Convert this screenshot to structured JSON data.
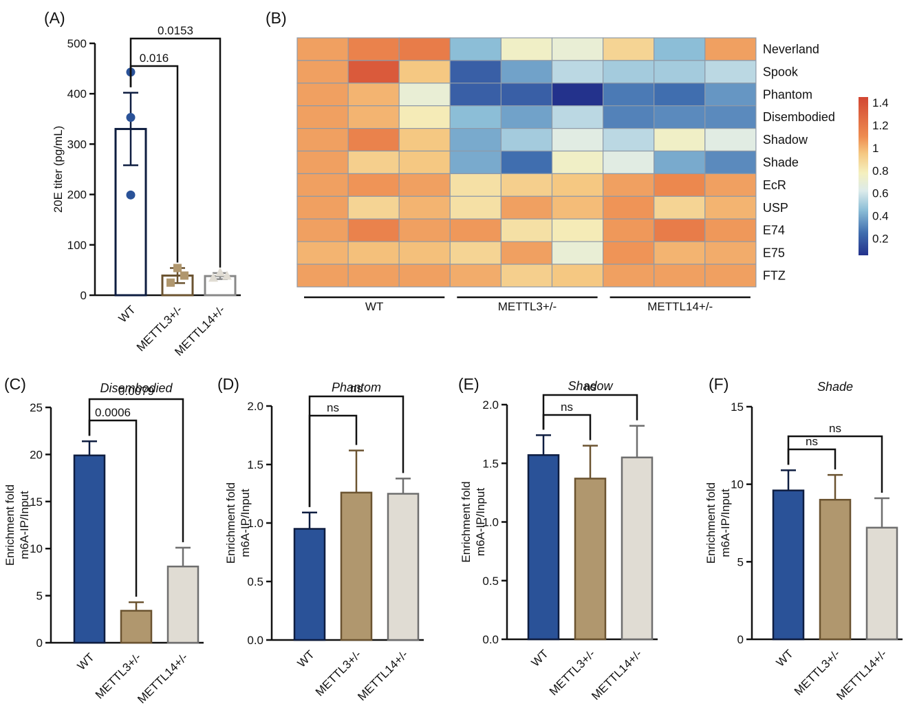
{
  "panel_labels": {
    "a": "(A)",
    "b": "(B)",
    "c": "(C)",
    "d": "(D)",
    "e": "(E)",
    "f": "(F)"
  },
  "colors": {
    "wt": "#2a5298",
    "mettl3": "#b0976e",
    "mettl14": "#e0dcd3",
    "mettl3_edge": "#6b5330",
    "mettl14_edge": "#6e6e6e",
    "wt_edge": "#0e1d40",
    "axis": "#111111"
  },
  "chart_data": [
    {
      "id": "A",
      "type": "bar",
      "title": "",
      "ylabel": "20E titer (pg/mL)",
      "categories": [
        "WT",
        "METTL3+/-",
        "METTL14+/-"
      ],
      "values": [
        330,
        39,
        38
      ],
      "errors": [
        72,
        15,
        6
      ],
      "points": [
        [
          443,
          353,
          199
        ],
        [
          54,
          39,
          25
        ],
        [
          46,
          39,
          35
        ]
      ],
      "ylim": [
        0,
        500
      ],
      "yticks": [
        "0",
        "100",
        "200",
        "300",
        "400",
        "500"
      ],
      "brackets": [
        {
          "from": 0,
          "to": 1,
          "label": "0.016"
        },
        {
          "from": 0,
          "to": 2,
          "label": "0.0153"
        }
      ]
    },
    {
      "id": "B",
      "type": "heatmap",
      "rows": [
        "Neverland",
        "Spook",
        "Phantom",
        "Disembodied",
        "Shadow",
        "Shade",
        "EcR",
        "USP",
        "E74",
        "E75",
        "FTZ"
      ],
      "groups": [
        "WT",
        "METTL3+/-",
        "METTL14+/-"
      ],
      "columns_per_group": 3,
      "values": [
        [
          1.05,
          1.15,
          1.18,
          0.45,
          0.75,
          0.7,
          0.9,
          0.45,
          1.05
        ],
        [
          1.05,
          1.35,
          0.95,
          0.2,
          0.38,
          0.55,
          0.5,
          0.5,
          0.55
        ],
        [
          1.05,
          1.0,
          0.7,
          0.2,
          0.2,
          0.05,
          0.28,
          0.25,
          0.35
        ],
        [
          1.05,
          1.0,
          0.8,
          0.45,
          0.38,
          0.55,
          0.3,
          0.32,
          0.32
        ],
        [
          1.05,
          1.15,
          0.95,
          0.4,
          0.5,
          0.65,
          0.55,
          0.75,
          0.65
        ],
        [
          1.05,
          0.92,
          0.95,
          0.4,
          0.25,
          0.75,
          0.65,
          0.4,
          0.32
        ],
        [
          1.05,
          1.08,
          1.05,
          0.85,
          0.92,
          0.95,
          1.05,
          1.12,
          1.05
        ],
        [
          1.05,
          0.9,
          1.0,
          0.85,
          1.05,
          0.98,
          1.08,
          0.9,
          1.0
        ],
        [
          1.05,
          1.15,
          1.05,
          1.07,
          0.85,
          0.8,
          1.07,
          1.18,
          1.07
        ],
        [
          1.0,
          0.97,
          0.97,
          0.9,
          1.05,
          0.7,
          1.08,
          1.0,
          1.02
        ],
        [
          1.05,
          1.05,
          1.05,
          1.02,
          0.92,
          0.95,
          1.05,
          1.05,
          1.05
        ]
      ],
      "colorbar": {
        "ticks": [
          "1.4",
          "1.2",
          "1",
          "0.8",
          "0.6",
          "0.4",
          "0.2"
        ],
        "range": [
          0.05,
          1.45
        ]
      }
    },
    {
      "id": "C",
      "type": "bar",
      "title": "Disembodied",
      "ylabel_lines": [
        "Enrichment fold",
        "m6A-IP/Input"
      ],
      "categories": [
        "WT",
        "METTL3+/-",
        "METTL14+/-"
      ],
      "values": [
        19.9,
        3.4,
        8.1
      ],
      "errors": [
        1.5,
        0.9,
        2.0
      ],
      "ylim": [
        0,
        25
      ],
      "yticks": [
        "0",
        "5",
        "10",
        "15",
        "20",
        "25"
      ],
      "brackets": [
        {
          "from": 0,
          "to": 1,
          "label": "0.0006"
        },
        {
          "from": 0,
          "to": 2,
          "label": "0.0079"
        }
      ]
    },
    {
      "id": "D",
      "type": "bar",
      "title": "Phantom",
      "ylabel_lines": [
        "Enrichment fold",
        "m6A-IP/Input"
      ],
      "categories": [
        "WT",
        "METTL3+/-",
        "METTL14+/-"
      ],
      "values": [
        0.95,
        1.26,
        1.25
      ],
      "errors": [
        0.14,
        0.36,
        0.13
      ],
      "ylim": [
        0,
        2.0
      ],
      "yticks": [
        "0.0",
        "0.5",
        "1.0",
        "1.5",
        "2.0"
      ],
      "brackets": [
        {
          "from": 0,
          "to": 1,
          "label": "ns"
        },
        {
          "from": 0,
          "to": 2,
          "label": "ns"
        }
      ]
    },
    {
      "id": "E",
      "type": "bar",
      "title": "Shadow",
      "ylabel_lines": [
        "Enrichment fold",
        "m6A-IP/Input"
      ],
      "categories": [
        "WT",
        "METTL3+/-",
        "METTL14+/-"
      ],
      "values": [
        1.57,
        1.37,
        1.55
      ],
      "errors": [
        0.17,
        0.28,
        0.27
      ],
      "ylim": [
        0,
        2.0
      ],
      "yticks": [
        "0.0",
        "0.5",
        "1.0",
        "1.5",
        "2.0"
      ],
      "brackets": [
        {
          "from": 0,
          "to": 1,
          "label": "ns"
        },
        {
          "from": 0,
          "to": 2,
          "label": "ns"
        }
      ]
    },
    {
      "id": "F",
      "type": "bar",
      "title": "Shade",
      "ylabel_lines": [
        "Enrichment fold",
        "m6A-IP/Input"
      ],
      "categories": [
        "WT",
        "METTL3+/-",
        "METTL14+/-"
      ],
      "values": [
        9.6,
        9.0,
        7.2
      ],
      "errors": [
        1.3,
        1.6,
        1.9
      ],
      "ylim": [
        0,
        15
      ],
      "yticks": [
        "0",
        "5",
        "10",
        "15"
      ],
      "brackets": [
        {
          "from": 0,
          "to": 1,
          "label": "ns"
        },
        {
          "from": 0,
          "to": 2,
          "label": "ns"
        }
      ]
    }
  ]
}
